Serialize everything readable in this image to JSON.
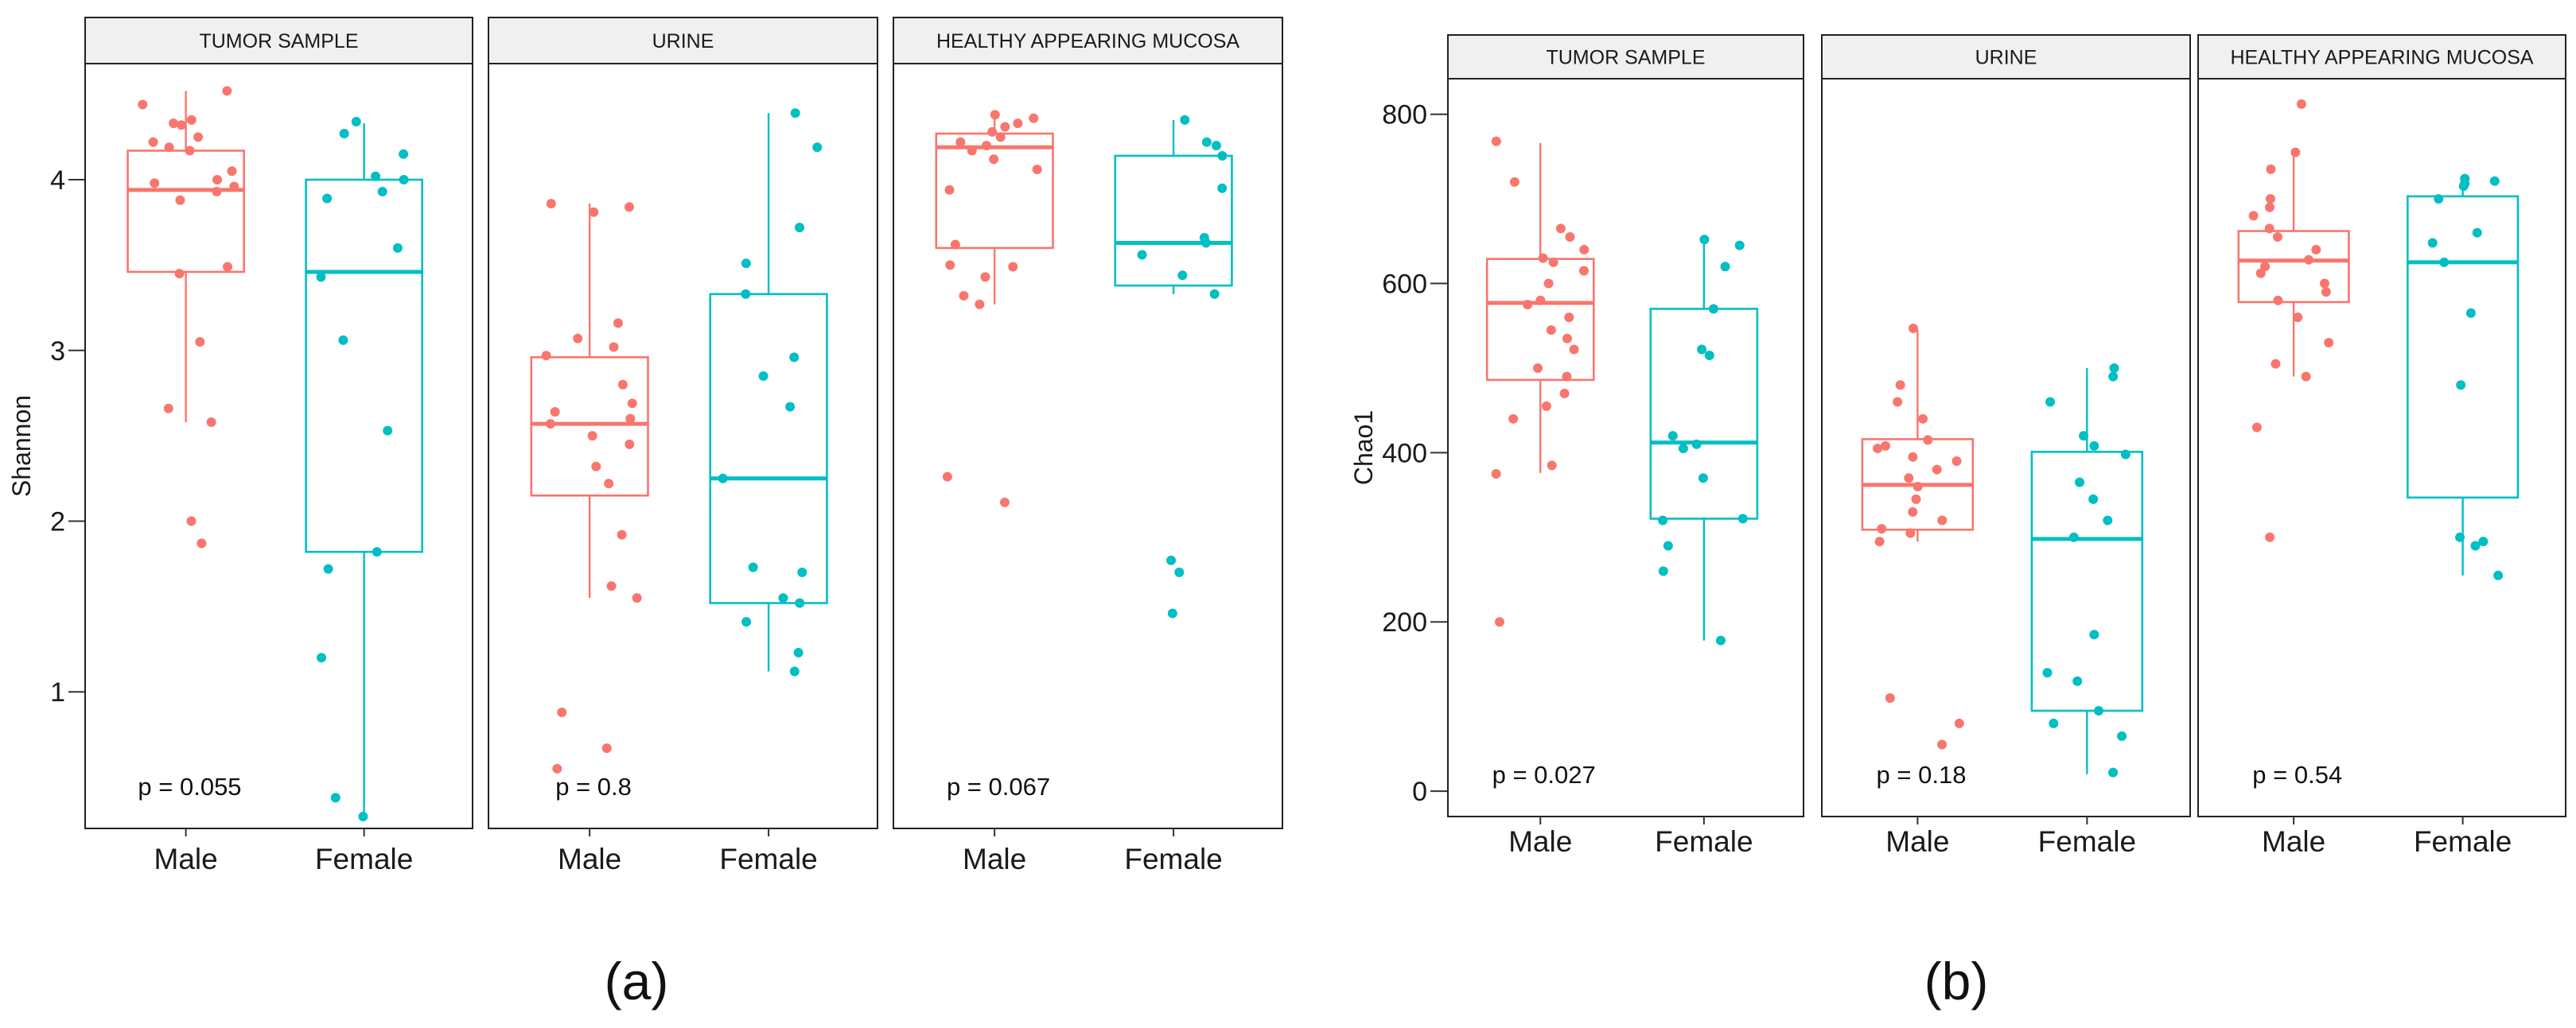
{
  "chart_data": [
    {
      "id": "a",
      "type": "box",
      "sublabel": "(a)",
      "ylabel": "Shannon",
      "ylim": [
        0.2,
        4.68
      ],
      "yticks": [
        1,
        2,
        3,
        4
      ],
      "categories": [
        "Male",
        "Female"
      ],
      "colors": {
        "Male": "#f8766d",
        "Female": "#00bfc4"
      },
      "facets": [
        {
          "strip": "TUMOR SAMPLE",
          "p": "p = 0.055",
          "groups": [
            {
              "name": "Male",
              "box": {
                "q1": 3.46,
                "median": 3.94,
                "q3": 4.17,
                "whisker_low": 2.58,
                "whisker_high": 4.52
              },
              "points": [
                4.52,
                4.44,
                4.35,
                4.33,
                4.32,
                4.25,
                4.22,
                4.19,
                4.17,
                4.05,
                4.0,
                3.98,
                3.96,
                3.93,
                3.88,
                3.49,
                3.45,
                3.05,
                2.66,
                2.58,
                2.0,
                1.87
              ]
            },
            {
              "name": "Female",
              "box": {
                "q1": 1.82,
                "median": 3.46,
                "q3": 4.0,
                "whisker_low": 0.27,
                "whisker_high": 4.33
              },
              "points": [
                4.34,
                4.27,
                4.15,
                4.02,
                4.0,
                3.93,
                3.89,
                3.6,
                3.43,
                3.06,
                2.53,
                1.82,
                1.72,
                1.2,
                0.38,
                0.27
              ]
            }
          ]
        },
        {
          "strip": "URINE",
          "p": "p = 0.8",
          "groups": [
            {
              "name": "Male",
              "box": {
                "q1": 2.15,
                "median": 2.57,
                "q3": 2.96,
                "whisker_low": 1.55,
                "whisker_high": 3.86
              },
              "points": [
                3.86,
                3.84,
                3.81,
                3.16,
                3.07,
                3.02,
                2.97,
                2.8,
                2.69,
                2.64,
                2.6,
                2.57,
                2.5,
                2.45,
                2.32,
                2.22,
                1.92,
                1.62,
                1.55,
                0.88,
                0.67,
                0.55
              ]
            },
            {
              "name": "Female",
              "box": {
                "q1": 1.52,
                "median": 2.25,
                "q3": 3.33,
                "whisker_low": 1.12,
                "whisker_high": 4.39
              },
              "points": [
                4.39,
                4.19,
                3.72,
                3.51,
                3.33,
                2.96,
                2.85,
                2.67,
                2.25,
                1.73,
                1.7,
                1.55,
                1.52,
                1.41,
                1.23,
                1.12
              ]
            }
          ]
        },
        {
          "strip": "HEALTHY APPEARING MUCOSA",
          "p": "p = 0.067",
          "groups": [
            {
              "name": "Male",
              "box": {
                "q1": 3.6,
                "median": 4.19,
                "q3": 4.27,
                "whisker_low": 3.27,
                "whisker_high": 4.38
              },
              "points": [
                4.38,
                4.36,
                4.33,
                4.31,
                4.28,
                4.25,
                4.22,
                4.2,
                4.17,
                4.12,
                4.06,
                3.94,
                3.62,
                3.5,
                3.49,
                3.43,
                3.32,
                3.27,
                2.26,
                2.11
              ]
            },
            {
              "name": "Female",
              "box": {
                "q1": 3.38,
                "median": 3.63,
                "q3": 4.14,
                "whisker_low": 3.33,
                "whisker_high": 4.35
              },
              "points": [
                4.35,
                4.22,
                4.2,
                4.14,
                3.95,
                3.66,
                3.63,
                3.56,
                3.44,
                3.33,
                1.77,
                1.7,
                1.46
              ]
            }
          ]
        }
      ]
    },
    {
      "id": "b",
      "type": "box",
      "sublabel": "(b)",
      "ylabel": "Chao1",
      "ylim": [
        -30,
        842
      ],
      "yticks": [
        0,
        200,
        400,
        600,
        800
      ],
      "categories": [
        "Male",
        "Female"
      ],
      "colors": {
        "Male": "#f8766d",
        "Female": "#00bfc4"
      },
      "facets": [
        {
          "strip": "TUMOR SAMPLE",
          "p": "p = 0.027",
          "groups": [
            {
              "name": "Male",
              "box": {
                "q1": 486,
                "median": 577,
                "q3": 629,
                "whisker_low": 376,
                "whisker_high": 766
              },
              "points": [
                768,
                720,
                665,
                655,
                640,
                630,
                625,
                615,
                600,
                580,
                575,
                560,
                545,
                535,
                522,
                500,
                490,
                470,
                455,
                440,
                385,
                375,
                200
              ]
            },
            {
              "name": "Female",
              "box": {
                "q1": 322,
                "median": 412,
                "q3": 570,
                "whisker_low": 178,
                "whisker_high": 650
              },
              "points": [
                652,
                645,
                620,
                570,
                522,
                515,
                420,
                410,
                405,
                370,
                322,
                320,
                290,
                260,
                178
              ]
            }
          ]
        },
        {
          "strip": "URINE",
          "p": "p = 0.18",
          "groups": [
            {
              "name": "Male",
              "box": {
                "q1": 309,
                "median": 362,
                "q3": 416,
                "whisker_low": 295,
                "whisker_high": 545
              },
              "points": [
                547,
                480,
                460,
                440,
                415,
                408,
                405,
                395,
                390,
                380,
                370,
                360,
                345,
                330,
                320,
                310,
                305,
                295,
                110,
                80,
                55
              ]
            },
            {
              "name": "Female",
              "box": {
                "q1": 95,
                "median": 298,
                "q3": 401,
                "whisker_low": 20,
                "whisker_high": 500
              },
              "points": [
                500,
                490,
                460,
                420,
                408,
                398,
                365,
                345,
                320,
                300,
                185,
                140,
                130,
                95,
                80,
                65,
                22
              ]
            }
          ]
        },
        {
          "strip": "HEALTHY APPEARING MUCOSA",
          "p": "p = 0.54",
          "groups": [
            {
              "name": "Male",
              "box": {
                "q1": 578,
                "median": 627,
                "q3": 662,
                "whisker_low": 490,
                "whisker_high": 752
              },
              "points": [
                812,
                755,
                735,
                700,
                690,
                680,
                665,
                655,
                640,
                628,
                620,
                612,
                600,
                590,
                580,
                560,
                530,
                505,
                490,
                430,
                300
              ]
            },
            {
              "name": "Female",
              "box": {
                "q1": 347,
                "median": 625,
                "q3": 703,
                "whisker_low": 255,
                "whisker_high": 722
              },
              "points": [
                724,
                721,
                718,
                715,
                700,
                660,
                648,
                625,
                565,
                480,
                300,
                295,
                290,
                255
              ]
            }
          ]
        }
      ]
    }
  ]
}
